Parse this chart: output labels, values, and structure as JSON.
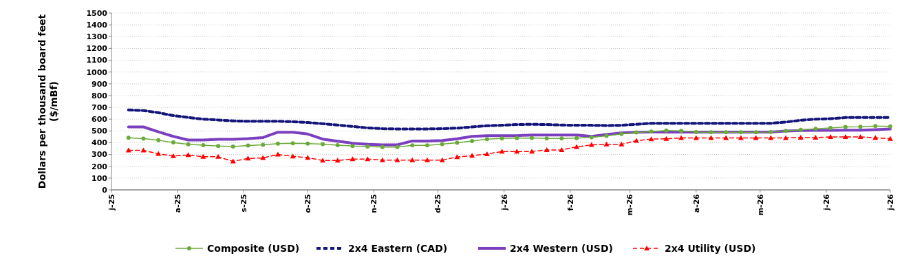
{
  "chart_data": {
    "type": "line",
    "ylabel": "Dollars per thousand board feet ($/mBf)",
    "x": [
      "2025-07-09",
      "2025-07-16",
      "2025-07-23",
      "2025-07-30",
      "2025-08-06",
      "2025-08-13",
      "2025-08-20",
      "2025-08-27",
      "2025-09-03",
      "2025-09-10",
      "2025-09-17",
      "2025-09-24",
      "2025-10-01",
      "2025-10-08",
      "2025-10-15",
      "2025-10-22",
      "2025-10-29",
      "2025-11-05",
      "2025-11-12",
      "2025-11-19",
      "2025-11-26",
      "2025-12-03",
      "2025-12-10",
      "2025-12-17",
      "2025-12-24",
      "2025-12-31",
      "2026-01-07",
      "2026-01-14",
      "2026-01-21",
      "2026-01-28",
      "2026-02-04",
      "2026-02-11",
      "2026-02-18",
      "2026-02-25",
      "2026-03-04",
      "2026-03-11",
      "2026-03-18",
      "2026-03-25",
      "2026-04-01",
      "2026-04-08",
      "2026-04-15",
      "2026-04-22",
      "2026-04-29",
      "2026-05-06",
      "2026-05-13",
      "2026-05-20",
      "2026-05-27",
      "2026-06-03",
      "2026-06-10",
      "2026-06-17",
      "2026-06-24",
      "2026-07-01"
    ],
    "series": [
      {
        "name": "Composite (USD)",
        "color": "#6aaa3a",
        "marker": "circle",
        "line_style": "solid",
        "values": [
          442,
          435,
          421,
          402,
          386,
          380,
          372,
          368,
          376,
          382,
          392,
          396,
          392,
          388,
          380,
          372,
          368,
          363,
          363,
          378,
          378,
          388,
          400,
          415,
          431,
          437,
          439,
          440,
          437,
          437,
          439,
          446,
          458,
          474,
          487,
          495,
          503,
          501,
          491,
          489,
          489,
          489,
          489,
          491,
          501,
          509,
          518,
          526,
          534,
          536,
          542,
          538
        ]
      },
      {
        "name": "2x4 Eastern (CAD)",
        "color": "#14147a",
        "marker": "none",
        "line_style": "dashed",
        "values": [
          678,
          673,
          655,
          630,
          614,
          600,
          593,
          585,
          582,
          582,
          582,
          578,
          572,
          561,
          550,
          538,
          526,
          519,
          517,
          517,
          517,
          519,
          524,
          534,
          544,
          548,
          554,
          556,
          554,
          550,
          548,
          548,
          546,
          548,
          556,
          565,
          565,
          565,
          565,
          565,
          565,
          565,
          565,
          565,
          575,
          591,
          600,
          604,
          614,
          614,
          614,
          614
        ]
      },
      {
        "name": "2x4 Western (USD)",
        "color": "#7b3fbf",
        "marker": "none",
        "line_style": "solid",
        "values": [
          534,
          534,
          493,
          454,
          423,
          423,
          429,
          429,
          435,
          444,
          489,
          489,
          474,
          431,
          413,
          396,
          386,
          382,
          382,
          415,
          415,
          419,
          433,
          454,
          460,
          460,
          460,
          466,
          466,
          466,
          466,
          454,
          470,
          483,
          489,
          491,
          491,
          491,
          491,
          491,
          491,
          491,
          491,
          491,
          499,
          503,
          505,
          505,
          507,
          507,
          511,
          517
        ]
      },
      {
        "name": "2x4 Utility (USD)",
        "color": "#ff0000",
        "marker": "triangle",
        "line_style": "dashed",
        "values": [
          335,
          335,
          306,
          287,
          296,
          281,
          281,
          242,
          267,
          271,
          300,
          285,
          273,
          250,
          250,
          261,
          261,
          253,
          253,
          253,
          253,
          253,
          279,
          290,
          304,
          326,
          326,
          326,
          339,
          339,
          365,
          382,
          386,
          386,
          417,
          431,
          433,
          441,
          441,
          441,
          441,
          441,
          441,
          441,
          441,
          444,
          444,
          450,
          450,
          450,
          442,
          433
        ]
      }
    ],
    "xlim": [
      "2025-07-01",
      "2026-07-01"
    ],
    "xticks": [
      {
        "value": "2025-07-01",
        "label": "j-25"
      },
      {
        "value": "2025-08-01",
        "label": "a-25"
      },
      {
        "value": "2025-09-01",
        "label": "s-25"
      },
      {
        "value": "2025-10-01",
        "label": "o-25"
      },
      {
        "value": "2025-11-01",
        "label": "n-25"
      },
      {
        "value": "2025-12-01",
        "label": "d-25"
      },
      {
        "value": "2026-01-01",
        "label": "j-26"
      },
      {
        "value": "2026-02-01",
        "label": "f-26"
      },
      {
        "value": "2026-03-01",
        "label": "m-26"
      },
      {
        "value": "2026-04-01",
        "label": "a-26"
      },
      {
        "value": "2026-05-01",
        "label": "m-26"
      },
      {
        "value": "2026-06-01",
        "label": "j-26"
      },
      {
        "value": "2026-07-01",
        "label": "j-26"
      }
    ],
    "ylim": [
      0,
      1500
    ],
    "yticks": [
      0,
      100,
      200,
      300,
      400,
      500,
      600,
      700,
      800,
      900,
      1000,
      1100,
      1200,
      1300,
      1400,
      1500
    ],
    "grid": "y",
    "legend": "bottom"
  }
}
